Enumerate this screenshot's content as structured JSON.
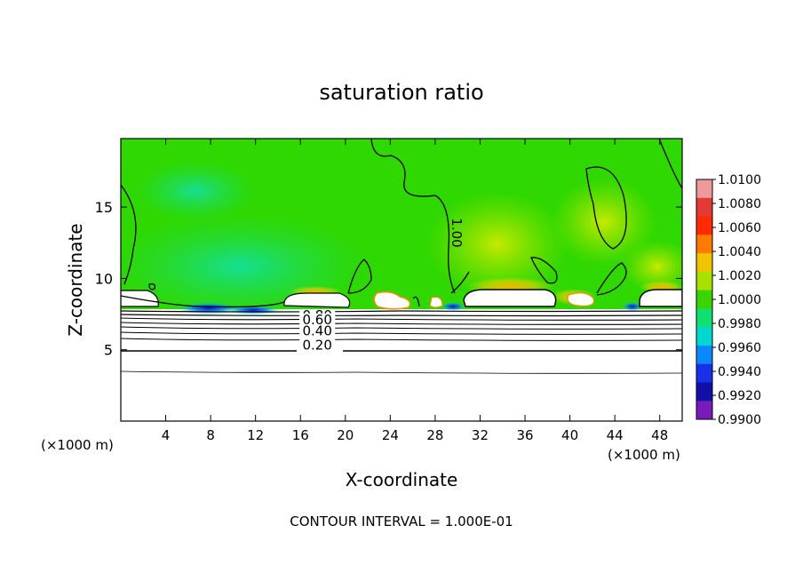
{
  "chart_data": {
    "type": "heatmap",
    "title": "saturation ratio",
    "xlabel": "X-coordinate",
    "ylabel": "Z-coordinate",
    "x_unit_label": "(×1000 m)",
    "y_unit_label": "(×1000 m)",
    "xlim": [
      0,
      50
    ],
    "ylim": [
      0,
      19.8
    ],
    "x_ticks": [
      4,
      8,
      12,
      16,
      20,
      24,
      28,
      32,
      36,
      40,
      44,
      48
    ],
    "y_ticks": [
      5,
      10,
      15
    ],
    "colorbar": {
      "min": 0.99,
      "max": 1.01,
      "labels": [
        "1.0100",
        "1.0080",
        "1.0060",
        "1.0040",
        "1.0020",
        "1.0000",
        "0.9980",
        "0.9960",
        "0.9940",
        "0.9920",
        "0.9900"
      ],
      "colors": [
        "#ef9a9a",
        "#e53935",
        "#ff2a00",
        "#ff7a00",
        "#f2c400",
        "#a8e000",
        "#3ad400",
        "#10e070",
        "#00d8d0",
        "#0a88ff",
        "#1830e8",
        "#1010a8",
        "#7a1ab8"
      ]
    },
    "contour_labels": [
      {
        "text": "1.00",
        "x": 29.5,
        "z": 13.2
      },
      {
        "text": "0.80",
        "x": 17.5,
        "z": 7.1
      },
      {
        "text": "0.60",
        "x": 17.5,
        "z": 6.8
      },
      {
        "text": "0.40",
        "x": 17.5,
        "z": 6.0
      },
      {
        "text": "0.20",
        "x": 17.5,
        "z": 5.0
      }
    ],
    "annotation": "CONTOUR INTERVAL = 1.000E-01"
  }
}
